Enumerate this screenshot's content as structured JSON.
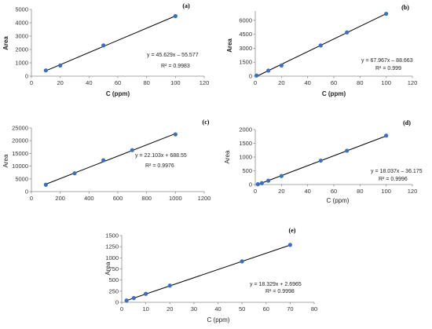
{
  "colors": {
    "marker": "#3b6fc0",
    "line": "#000000",
    "axis": "#8c8c8c"
  },
  "chart_data": [
    {
      "type": "scatter",
      "panel_label": "(a)",
      "xlabel": "C (ppm)",
      "ylabel": "Area",
      "xlim": [
        0,
        120
      ],
      "ylim": [
        0,
        5000
      ],
      "xticks": [
        "0",
        "20",
        "40",
        "60",
        "80",
        "100",
        "120"
      ],
      "yticks": [
        "0",
        "1000",
        "2000",
        "3000",
        "4000",
        "5000"
      ],
      "x": [
        10,
        20,
        50,
        100
      ],
      "y": [
        430,
        800,
        2300,
        4500
      ],
      "trendline": {
        "slope": 45.629,
        "intercept": -55.577
      },
      "equation": "y = 45.629x – 55.577",
      "r2": "R² = 0.9983"
    },
    {
      "type": "scatter",
      "panel_label": "(b)",
      "xlabel": "C (ppm)",
      "ylabel": "Area",
      "xlim": [
        0,
        120
      ],
      "ylim": [
        0,
        7000
      ],
      "xticks": [
        "0",
        "20",
        "40",
        "60",
        "80",
        "100",
        "120"
      ],
      "yticks": [
        "0",
        "1500",
        "3000",
        "4500",
        "6000"
      ],
      "x": [
        1,
        10,
        20,
        50,
        70,
        100
      ],
      "y": [
        70,
        600,
        1150,
        3300,
        4700,
        6700
      ],
      "trendline": {
        "slope": 67.967,
        "intercept": -88.663
      },
      "equation": "y = 67.967x – 88.663",
      "r2": "R² = 0.999"
    },
    {
      "type": "scatter",
      "panel_label": "(c)",
      "xlabel": "",
      "ylabel": "Area",
      "xlim": [
        0,
        1200
      ],
      "ylim": [
        0,
        25000
      ],
      "xticks": [
        "0",
        "200",
        "400",
        "600",
        "800",
        "1000",
        "1200"
      ],
      "yticks": [
        "0",
        "5000",
        "10000",
        "15000",
        "20000",
        "25000"
      ],
      "x": [
        100,
        300,
        500,
        700,
        1000
      ],
      "y": [
        2700,
        7200,
        12300,
        16300,
        22500
      ],
      "trendline": {
        "slope": 22.103,
        "intercept": 688.55
      },
      "equation": "y = 22.103x + 688.55",
      "r2": "R² = 0.9976"
    },
    {
      "type": "scatter",
      "panel_label": "(d)",
      "xlabel": "C (ppm)",
      "ylabel": "Area",
      "xlim": [
        0,
        120
      ],
      "ylim": [
        0,
        2000
      ],
      "xticks": [
        "0",
        "20",
        "40",
        "60",
        "80",
        "100",
        "120"
      ],
      "yticks": [
        "0",
        "500",
        "1000",
        "1500",
        "2000"
      ],
      "x": [
        2,
        5,
        10,
        20,
        50,
        70,
        100
      ],
      "y": [
        10,
        50,
        140,
        310,
        870,
        1230,
        1780
      ],
      "trendline": {
        "slope": 18.037,
        "intercept": -36.175
      },
      "equation": "y = 18.037x – 36.175",
      "r2": "R² = 0.9996"
    },
    {
      "type": "scatter",
      "panel_label": "(e)",
      "xlabel": "C (ppm)",
      "ylabel": "Area",
      "xlim": [
        0,
        80
      ],
      "ylim": [
        0,
        1500
      ],
      "xticks": [
        "0",
        "10",
        "20",
        "30",
        "40",
        "50",
        "60",
        "70",
        "80"
      ],
      "yticks": [
        "0",
        "250",
        "500",
        "750",
        "1000",
        "1250",
        "1500"
      ],
      "x": [
        2,
        5,
        10,
        20,
        50,
        70
      ],
      "y": [
        40,
        95,
        190,
        375,
        920,
        1290
      ],
      "trendline": {
        "slope": 18.329,
        "intercept": 2.6965
      },
      "equation": "y = 18.329x + 2.6965",
      "r2": "R² = 0.9998"
    }
  ]
}
